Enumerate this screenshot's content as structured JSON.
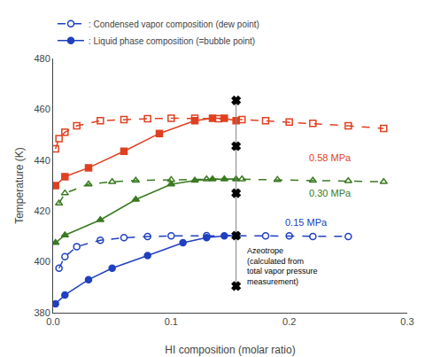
{
  "chart_data": {
    "type": "line",
    "xlabel": "HI composition (molar ratio)",
    "ylabel": "Temperature (K)",
    "xlim": [
      0.0,
      0.3
    ],
    "ylim": [
      380,
      480
    ],
    "xticks": [
      {
        "value": 0.0,
        "label": "0.0"
      },
      0.1,
      0.2,
      0.3
    ],
    "yticks": [
      380,
      400,
      420,
      440,
      460,
      480
    ],
    "grid": false,
    "legend": "top",
    "series": [
      {
        "color": "#E04020",
        "marker": "square-open",
        "line_style": "dash",
        "x": [
          0.002,
          0.005,
          0.01,
          0.02,
          0.04,
          0.06,
          0.08,
          0.1,
          0.12,
          0.14,
          0.16,
          0.18,
          0.2,
          0.22,
          0.25,
          0.28
        ],
        "values": [
          444.5,
          448.5,
          451.0,
          453.5,
          455.5,
          456.0,
          456.3,
          456.5,
          456.5,
          456.3,
          456.0,
          455.5,
          455.0,
          454.5,
          453.5,
          452.5
        ]
      },
      {
        "color": "#E04020",
        "marker": "square",
        "line_style": "solid",
        "x": [
          0.002,
          0.01,
          0.03,
          0.06,
          0.09,
          0.12,
          0.135,
          0.145,
          0.155
        ],
        "values": [
          430.0,
          433.5,
          437.0,
          443.5,
          450.5,
          455.5,
          456.5,
          456.5,
          455.5
        ]
      },
      {
        "color": "#3A7A20",
        "marker": "triangle-up-open",
        "line_style": "dash",
        "x": [
          0.005,
          0.01,
          0.03,
          0.05,
          0.07,
          0.1,
          0.13,
          0.16,
          0.19,
          0.22,
          0.25,
          0.28
        ],
        "values": [
          423.0,
          427.0,
          430.5,
          431.5,
          432.0,
          432.3,
          432.5,
          432.5,
          432.3,
          432.0,
          431.8,
          431.5
        ]
      },
      {
        "color": "#3A7A20",
        "marker": "triangle-up",
        "line_style": "solid",
        "x": [
          0.002,
          0.01,
          0.04,
          0.07,
          0.1,
          0.12,
          0.135,
          0.145,
          0.155
        ],
        "values": [
          407.5,
          410.5,
          416.5,
          424.5,
          430.5,
          432.0,
          432.5,
          432.5,
          432.5
        ]
      },
      {
        "name": ": Condensed vapor composition (dew point)",
        "color": "#2040C0",
        "marker": "circle-open",
        "line_style": "dash",
        "x": [
          0.005,
          0.01,
          0.02,
          0.04,
          0.06,
          0.08,
          0.1,
          0.13,
          0.155,
          0.18,
          0.2,
          0.22,
          0.25
        ],
        "values": [
          397.5,
          402.0,
          406.0,
          408.5,
          409.5,
          410.0,
          410.2,
          410.3,
          410.3,
          410.2,
          410.2,
          410.0,
          410.0
        ]
      },
      {
        "name": ": Liquid phase composition (=bubble point)",
        "color": "#2040C0",
        "marker": "circle",
        "line_style": "solid",
        "x": [
          0.002,
          0.01,
          0.03,
          0.05,
          0.08,
          0.11,
          0.13,
          0.145,
          0.155
        ],
        "values": [
          383.5,
          387.0,
          393.0,
          397.5,
          402.5,
          407.5,
          409.5,
          410.2,
          410.3
        ]
      },
      {
        "color": "gray",
        "line_style": "solid",
        "x": [
          0.155,
          0.155,
          0.155,
          0.155,
          0.155
        ],
        "values": [
          390.5,
          410.3,
          427.0,
          445.5,
          463.5
        ]
      },
      {
        "color": "black",
        "marker": "x",
        "line_style": "none",
        "x": [
          0.155,
          0.155,
          0.155,
          0.155,
          0.155
        ],
        "values": [
          390.5,
          410.3,
          427.0,
          445.5,
          463.5
        ]
      }
    ],
    "annotations": [
      {
        "text": "0.58 MPa",
        "x": 0.215,
        "y": 441.0,
        "color": "#E04020"
      },
      {
        "text": "0.30 MPa",
        "x": 0.215,
        "y": 427.0,
        "color": "#3A7A20"
      },
      {
        "text": "0.15 MPa",
        "x": 0.195,
        "y": 415.5,
        "color": "#2040C0"
      },
      {
        "text": "Azeotrope\n(calculated from\ntotal vapor pressure\nmeasurement)",
        "x": 0.163,
        "y": 407.0,
        "color": "black"
      }
    ]
  }
}
